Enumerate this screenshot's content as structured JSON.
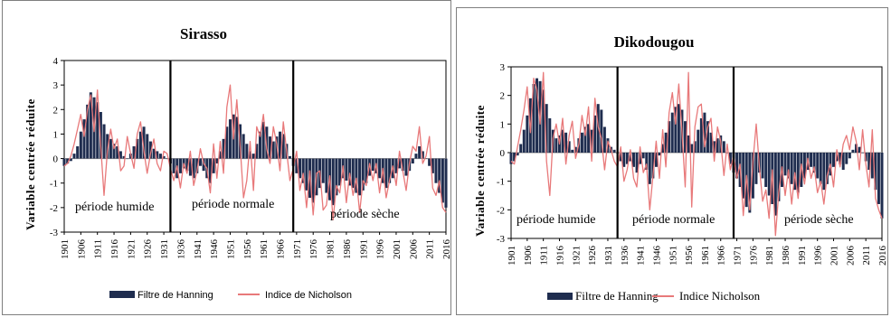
{
  "chart_data": [
    {
      "type": "bar",
      "title": "Sirasso",
      "ylabel": "Variable centrée réduite",
      "xlabel": "",
      "ylim": [
        -3,
        4
      ],
      "yticks": [
        "4",
        "3",
        "2",
        "1",
        "0",
        "-1",
        "-2",
        "-3"
      ],
      "xticks": [
        "1901",
        "1906",
        "1911",
        "1916",
        "1921",
        "1926",
        "1931",
        "1936",
        "1941",
        "1946",
        "1951",
        "1956",
        "1961",
        "1966",
        "1971",
        "1976",
        "1981",
        "1986",
        "1991",
        "1996",
        "2001",
        "2006",
        "2011",
        "2016"
      ],
      "x_range": [
        1901,
        2016
      ],
      "dividers": [
        1933,
        1970
      ],
      "periods": [
        {
          "label": "période humide"
        },
        {
          "label": "période normale"
        },
        {
          "label": "période sèche"
        }
      ],
      "legend": [
        "Filtre de Hanning",
        "Indice de Nicholson"
      ],
      "legend_style": "sans",
      "series": [
        {
          "name": "Filtre de Hanning",
          "kind": "bar",
          "color": "#1f2d4f",
          "values": [
            -0.3,
            -0.2,
            -0.1,
            0.2,
            0.5,
            1.1,
            1.6,
            2.2,
            2.7,
            2.5,
            2.3,
            1.9,
            1.4,
            1.0,
            0.8,
            0.6,
            0.5,
            0.3,
            0.1,
            0.0,
            0.2,
            0.5,
            0.8,
            1.1,
            1.3,
            1.0,
            0.7,
            0.4,
            0.3,
            0.2,
            0.1,
            0.0,
            -0.2,
            -0.6,
            -0.8,
            -0.6,
            -0.4,
            -0.5,
            -0.7,
            -0.8,
            -0.6,
            -0.3,
            -0.5,
            -0.8,
            -1.0,
            -0.6,
            -0.2,
            0.3,
            0.8,
            1.3,
            1.6,
            1.8,
            1.7,
            1.4,
            1.0,
            0.6,
            0.3,
            0.2,
            0.6,
            1.1,
            1.5,
            1.3,
            0.9,
            0.7,
            0.9,
            1.1,
            1.0,
            0.6,
            0.1,
            -0.3,
            -0.6,
            -0.8,
            -1.0,
            -1.3,
            -1.6,
            -1.8,
            -1.5,
            -1.2,
            -1.0,
            -1.4,
            -1.7,
            -1.9,
            -1.5,
            -1.1,
            -0.8,
            -0.9,
            -1.1,
            -1.2,
            -1.4,
            -1.5,
            -1.3,
            -1.0,
            -0.7,
            -0.5,
            -0.6,
            -0.8,
            -1.0,
            -1.2,
            -1.0,
            -0.8,
            -0.6,
            -0.4,
            -0.5,
            -0.7,
            -0.5,
            -0.2,
            0.2,
            0.5,
            0.3,
            0.0,
            -0.3,
            -0.6,
            -1.0,
            -1.4,
            -1.8,
            -2.0
          ]
        },
        {
          "name": "Indice de Nicholson",
          "kind": "line",
          "color": "#e8797a",
          "values": [
            -0.3,
            -0.2,
            0.1,
            0.6,
            1.2,
            1.8,
            0.9,
            2.0,
            2.6,
            1.1,
            2.8,
            0.5,
            -1.5,
            0.3,
            1.2,
            0.4,
            0.8,
            -0.5,
            -0.3,
            0.9,
            0.2,
            -0.4,
            1.0,
            1.5,
            0.3,
            -0.6,
            0.2,
            0.8,
            -0.2,
            -0.5,
            0.3,
            0.2,
            -0.4,
            -0.9,
            -0.3,
            -1.2,
            -0.2,
            -0.6,
            0.3,
            -1.1,
            -0.5,
            0.4,
            -0.2,
            -0.4,
            -1.4,
            0.6,
            -0.8,
            0.7,
            -0.6,
            2.1,
            3.0,
            0.8,
            2.4,
            0.5,
            -1.6,
            -0.9,
            0.7,
            -1.3,
            1.3,
            0.9,
            1.8,
            0.4,
            -0.2,
            1.3,
            0.6,
            -0.5,
            1.5,
            0.3,
            -0.9,
            -0.4,
            0.3,
            -1.3,
            -0.6,
            -2.0,
            -0.5,
            -2.3,
            -0.6,
            -0.5,
            -2.1,
            -1.9,
            -0.7,
            -2.5,
            -1.1,
            -1.4,
            -0.3,
            -1.8,
            -0.6,
            -1.5,
            -0.8,
            -2.2,
            -0.9,
            -1.1,
            -0.2,
            -0.9,
            -0.2,
            -1.4,
            -0.4,
            -1.6,
            -0.9,
            -0.3,
            -1.1,
            0.3,
            -0.5,
            -1.3,
            -0.2,
            0.5,
            0.3,
            1.3,
            -0.2,
            0.1,
            0.9,
            -1.2,
            -1.5,
            -0.9,
            -2.0,
            -2.2
          ]
        }
      ]
    },
    {
      "type": "bar",
      "title": "Dikodougou",
      "ylabel": "Variable centrée réduite",
      "xlabel": "",
      "ylim": [
        -3,
        3
      ],
      "yticks": [
        "3",
        "2",
        "1",
        "0",
        "-1",
        "-2",
        "-3"
      ],
      "xticks": [
        "1901",
        "1906",
        "1911",
        "1916",
        "1921",
        "1926",
        "1931",
        "1936",
        "1941",
        "1946",
        "1951",
        "1956",
        "1961",
        "1966",
        "1971",
        "1976",
        "1981",
        "1986",
        "1991",
        "1996",
        "2001",
        "2006",
        "2011",
        "2016"
      ],
      "x_range": [
        1901,
        2016
      ],
      "dividers": [
        1934,
        1970
      ],
      "periods": [
        {
          "label": "période humide"
        },
        {
          "label": "période normale"
        },
        {
          "label": "période sèche"
        }
      ],
      "legend": [
        "Filtre de Hanning",
        "Indice Nicholson"
      ],
      "legend_style": "serif",
      "series": [
        {
          "name": "Filtre de Hanning",
          "kind": "bar",
          "color": "#1f2d4f",
          "values": [
            -0.4,
            -0.3,
            -0.1,
            0.3,
            0.8,
            1.3,
            1.9,
            2.4,
            2.6,
            2.5,
            2.2,
            1.7,
            1.2,
            0.8,
            0.5,
            0.6,
            0.8,
            0.7,
            0.4,
            0.1,
            0.2,
            0.5,
            0.7,
            0.9,
            1.0,
            0.8,
            1.3,
            1.7,
            1.5,
            0.9,
            0.5,
            0.2,
            0.1,
            0.0,
            -0.3,
            -0.5,
            -0.4,
            -0.3,
            -0.5,
            -0.7,
            -0.4,
            -0.2,
            -0.6,
            -1.1,
            -0.9,
            -0.5,
            -0.1,
            0.3,
            0.7,
            1.1,
            1.4,
            1.6,
            1.7,
            1.5,
            1.1,
            0.6,
            0.3,
            0.4,
            0.8,
            1.2,
            1.4,
            1.1,
            0.7,
            0.4,
            0.5,
            0.6,
            0.4,
            0.0,
            -0.4,
            -0.7,
            -0.9,
            -1.2,
            -1.6,
            -1.9,
            -2.1,
            -1.6,
            -1.1,
            -0.7,
            -0.9,
            -1.2,
            -1.5,
            -1.8,
            -2.2,
            -1.7,
            -1.2,
            -0.8,
            -0.9,
            -1.1,
            -1.3,
            -1.4,
            -1.2,
            -0.9,
            -0.6,
            -0.5,
            -0.7,
            -0.9,
            -1.1,
            -1.3,
            -1.1,
            -0.8,
            -0.5,
            -0.3,
            -0.4,
            -0.6,
            -0.4,
            -0.2,
            0.1,
            0.3,
            0.2,
            0.0,
            -0.3,
            -0.6,
            -0.9,
            -1.3,
            -1.8,
            -2.3
          ]
        },
        {
          "name": "Indice Nicholson",
          "kind": "line",
          "color": "#e8797a",
          "values": [
            -0.3,
            -0.4,
            0.2,
            0.8,
            1.5,
            2.3,
            0.7,
            2.6,
            2.2,
            1.0,
            2.8,
            -0.3,
            -1.5,
            0.5,
            1.0,
            0.3,
            1.2,
            -0.4,
            0.6,
            1.1,
            -0.2,
            0.3,
            1.3,
            0.6,
            1.6,
            -0.3,
            1.9,
            0.9,
            0.5,
            -0.6,
            0.4,
            0.1,
            -0.3,
            -0.5,
            0.2,
            -1.0,
            -0.6,
            0.1,
            -0.9,
            -1.2,
            0.2,
            -0.7,
            -0.4,
            -2.0,
            -0.8,
            0.4,
            -0.9,
            0.8,
            -0.5,
            1.4,
            2.1,
            1.0,
            2.4,
            0.7,
            -1.2,
            2.8,
            -1.9,
            0.9,
            1.6,
            1.7,
            0.2,
            0.9,
            1.2,
            -0.3,
            0.9,
            0.4,
            -0.8,
            0.3,
            -0.6,
            -0.1,
            -0.9,
            -0.4,
            -2.2,
            -0.8,
            -2.0,
            -0.3,
            1.0,
            -0.5,
            -1.7,
            -1.3,
            -2.3,
            -0.6,
            -2.9,
            -1.4,
            -0.5,
            -1.5,
            -0.6,
            -1.8,
            -0.7,
            -1.6,
            -0.4,
            -1.1,
            -0.2,
            -0.9,
            -0.5,
            -1.4,
            -1.0,
            -1.8,
            -0.8,
            -0.4,
            -1.2,
            0.1,
            -0.5,
            0.3,
            0.6,
            0.1,
            0.9,
            0.4,
            -0.6,
            0.8,
            -0.4,
            -1.2,
            0.8,
            -1.6,
            -2.0,
            -2.3
          ]
        }
      ]
    }
  ]
}
